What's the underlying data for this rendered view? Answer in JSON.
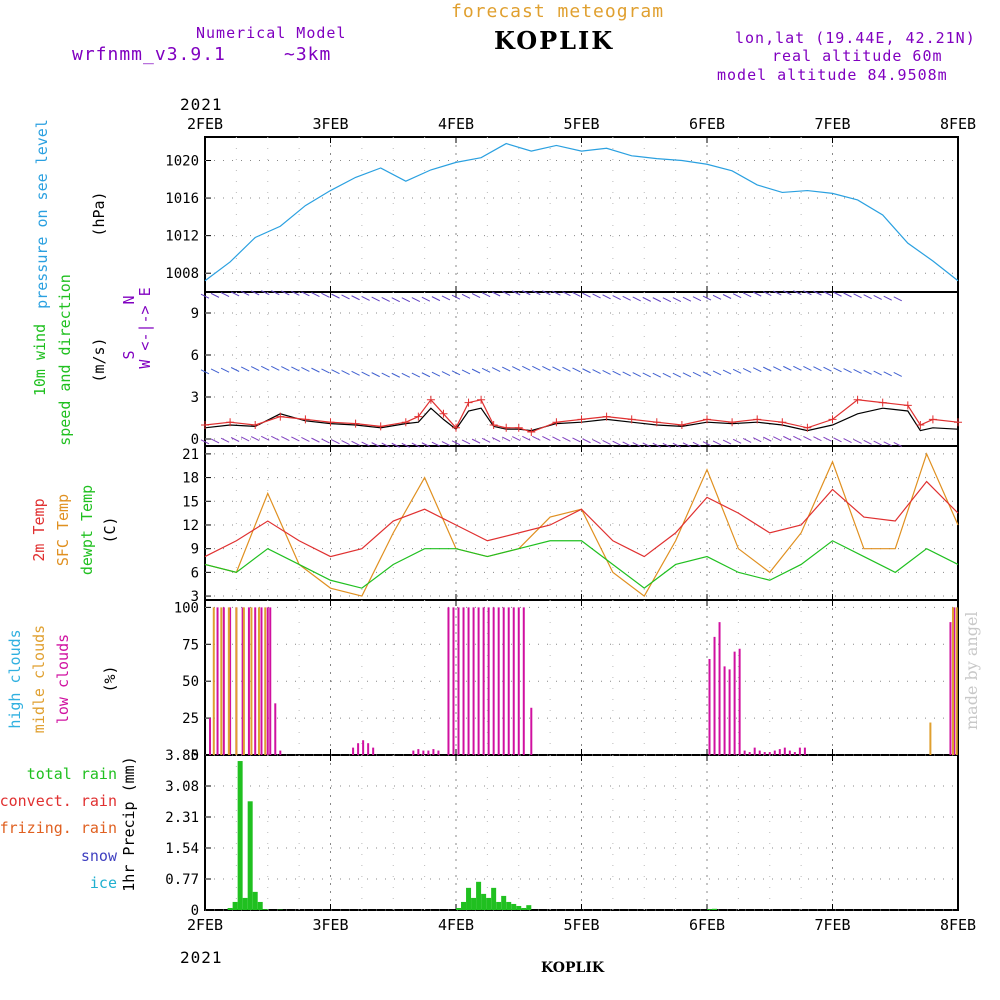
{
  "header": {
    "model_label": "Numerical Model",
    "model_name": "wrfnmm_v3.9.1",
    "resolution": "~3km",
    "chart_type": "forecast meteogram",
    "station": "KOPLIK",
    "lonlat": "lon,lat (19.44E, 42.21N)",
    "real_alt": "real altitude 60m",
    "model_alt": "model altitude  84.9508m",
    "credit": "made by angel"
  },
  "colors": {
    "pressure": "#2aa0e0",
    "wind_obs": "#e03030",
    "wind_model": "#000000",
    "t2m": "#e03030",
    "sfc": "#e09020",
    "dew": "#20c020",
    "low_cloud": "#d010a0",
    "mid_cloud": "#e0a030",
    "high_cloud": "#30b0e0",
    "total_rain": "#20c020",
    "convect_rain": "#e03030",
    "frizing_rain": "#e06020",
    "snow": "#4040c0",
    "ice": "#20b0d0",
    "grid": "#888888"
  },
  "chart_data": {
    "type": "line",
    "x_axis": {
      "year": "2021",
      "ticks": [
        "2FEB",
        "3FEB",
        "4FEB",
        "5FEB",
        "6FEB",
        "7FEB",
        "8FEB"
      ],
      "xlim": [
        0,
        6
      ]
    },
    "xlabel": "KOPLIK",
    "panels": [
      {
        "id": "pressure",
        "ylabel_lines": [
          "pressure on see level",
          "(hPa)"
        ],
        "ylim": [
          1006,
          1022.5
        ],
        "yticks": [
          "1008",
          "1012",
          "1016",
          "1020"
        ],
        "ytick_values": [
          1008,
          1012,
          1016,
          1020
        ],
        "series": [
          {
            "x": [
              0,
              0.2,
              0.4,
              0.6,
              0.8,
              1.0,
              1.2,
              1.4,
              1.6,
              1.8,
              2.0,
              2.2,
              2.4,
              2.6,
              2.8,
              3.0,
              3.2,
              3.4,
              3.6,
              3.8,
              4.0,
              4.2,
              4.4,
              4.6,
              4.8,
              5.0,
              5.2,
              5.4,
              5.6,
              5.8,
              6.0
            ],
            "y": [
              1007.2,
              1009.2,
              1011.8,
              1013.0,
              1015.2,
              1016.8,
              1018.2,
              1019.2,
              1017.8,
              1019.0,
              1019.8,
              1020.3,
              1021.8,
              1021.0,
              1021.6,
              1021.0,
              1021.3,
              1020.5,
              1020.2,
              1020.0,
              1019.6,
              1018.9,
              1017.4,
              1016.6,
              1016.8,
              1016.5,
              1015.8,
              1014.2,
              1011.2,
              1009.3,
              1007.2
            ]
          }
        ]
      },
      {
        "id": "wind",
        "ylabel_lines": [
          "10m wind",
          "speed and direction",
          "(m/s)"
        ],
        "compass": [
          "N",
          "W <-|-> E",
          "S"
        ],
        "ylim": [
          -0.5,
          10.5
        ],
        "yticks": [
          "0",
          "3",
          "6",
          "9"
        ],
        "ytick_values": [
          0,
          3,
          6,
          9
        ],
        "series": [
          {
            "name": "obs",
            "x": [
              0,
              0.2,
              0.4,
              0.6,
              0.8,
              1.0,
              1.2,
              1.4,
              1.6,
              1.7,
              1.8,
              1.9,
              2.0,
              2.1,
              2.2,
              2.3,
              2.4,
              2.5,
              2.6,
              2.8,
              3.0,
              3.2,
              3.4,
              3.6,
              3.8,
              4.0,
              4.2,
              4.4,
              4.6,
              4.8,
              5.0,
              5.2,
              5.4,
              5.6,
              5.7,
              5.8,
              6.0
            ],
            "y": [
              1.0,
              1.2,
              1.0,
              1.6,
              1.4,
              1.2,
              1.1,
              0.9,
              1.2,
              1.6,
              2.8,
              1.8,
              0.8,
              2.6,
              2.8,
              1.0,
              0.8,
              0.8,
              0.5,
              1.2,
              1.4,
              1.6,
              1.4,
              1.2,
              1.0,
              1.4,
              1.2,
              1.4,
              1.2,
              0.8,
              1.4,
              2.8,
              2.6,
              2.4,
              1.0,
              1.4,
              1.2
            ]
          },
          {
            "name": "model",
            "x": [
              0,
              0.2,
              0.4,
              0.6,
              0.8,
              1.0,
              1.2,
              1.4,
              1.6,
              1.7,
              1.8,
              1.9,
              2.0,
              2.1,
              2.2,
              2.3,
              2.4,
              2.5,
              2.6,
              2.8,
              3.0,
              3.2,
              3.4,
              3.6,
              3.8,
              4.0,
              4.2,
              4.4,
              4.6,
              4.8,
              5.0,
              5.2,
              5.4,
              5.6,
              5.7,
              5.8,
              6.0
            ],
            "y": [
              0.8,
              1.0,
              0.9,
              1.8,
              1.3,
              1.1,
              1.0,
              0.8,
              1.1,
              1.2,
              2.2,
              1.4,
              0.7,
              2.0,
              2.2,
              0.9,
              0.7,
              0.7,
              0.6,
              1.1,
              1.2,
              1.4,
              1.2,
              1.0,
              0.9,
              1.2,
              1.1,
              1.2,
              1.0,
              0.6,
              1.0,
              1.8,
              2.2,
              2.0,
              0.6,
              0.8,
              0.7
            ]
          }
        ]
      },
      {
        "id": "temperature",
        "ylabel_lines": [
          "2m Temp",
          "SFC Temp",
          "dewpt Temp",
          "(C)"
        ],
        "ylim": [
          2.5,
          22
        ],
        "yticks": [
          "3",
          "6",
          "9",
          "12",
          "15",
          "18",
          "21"
        ],
        "ytick_values": [
          3,
          6,
          9,
          12,
          15,
          18,
          21
        ],
        "series": [
          {
            "name": "2m Temp",
            "x": [
              0,
              0.25,
              0.5,
              0.75,
              1.0,
              1.25,
              1.5,
              1.75,
              2.0,
              2.25,
              2.5,
              2.75,
              3.0,
              3.25,
              3.5,
              3.75,
              4.0,
              4.25,
              4.5,
              4.75,
              5.0,
              5.25,
              5.5,
              5.75,
              6.0
            ],
            "y": [
              8,
              10,
              12.5,
              10,
              8,
              9,
              12.5,
              14,
              12,
              10,
              11,
              12,
              14,
              10,
              8,
              11,
              15.5,
              13.5,
              11,
              12,
              16.5,
              13,
              12.5,
              17.5,
              13.5
            ]
          },
          {
            "name": "SFC Temp",
            "x": [
              0,
              0.25,
              0.5,
              0.75,
              1.0,
              1.25,
              1.5,
              1.75,
              2.0,
              2.25,
              2.5,
              2.75,
              3.0,
              3.25,
              3.5,
              3.75,
              4.0,
              4.25,
              4.5,
              4.75,
              5.0,
              5.25,
              5.5,
              5.75,
              6.0
            ],
            "y": [
              7,
              6,
              16,
              7,
              4,
              3,
              11,
              18,
              9,
              8,
              9,
              13,
              14,
              6,
              3,
              10,
              19,
              9,
              6,
              11,
              20,
              9,
              9,
              21,
              12
            ]
          },
          {
            "name": "dewpt Temp",
            "x": [
              0,
              0.25,
              0.5,
              0.75,
              1.0,
              1.25,
              1.5,
              1.75,
              2.0,
              2.25,
              2.5,
              2.75,
              3.0,
              3.25,
              3.5,
              3.75,
              4.0,
              4.25,
              4.5,
              4.75,
              5.0,
              5.25,
              5.5,
              5.75,
              6.0
            ],
            "y": [
              7,
              6,
              9,
              7,
              5,
              4,
              7,
              9,
              9,
              8,
              9,
              10,
              10,
              7,
              4,
              7,
              8,
              6,
              5,
              7,
              10,
              8,
              6,
              9,
              7
            ]
          }
        ]
      },
      {
        "id": "clouds",
        "ylabel_lines": [
          "high  clouds",
          "midle clouds",
          "low   clouds",
          "(%)"
        ],
        "ylim": [
          0,
          105
        ],
        "yticks": [
          "0",
          "25",
          "50",
          "75",
          "100"
        ],
        "ytick_values": [
          0,
          25,
          50,
          75,
          100
        ],
        "series": [
          {
            "name": "low",
            "x": [
              0.04,
              0.1,
              0.15,
              0.2,
              0.25,
              0.3,
              0.35,
              0.4,
              0.45,
              0.5,
              0.52,
              0.56,
              0.6,
              1.18,
              1.22,
              1.26,
              1.3,
              1.34,
              1.66,
              1.7,
              1.74,
              1.78,
              1.82,
              1.86,
              1.94,
              1.98,
              2.02,
              2.06,
              2.1,
              2.14,
              2.18,
              2.22,
              2.26,
              2.3,
              2.34,
              2.38,
              2.42,
              2.46,
              2.5,
              2.54,
              2.6,
              4.02,
              4.06,
              4.1,
              4.14,
              4.18,
              4.22,
              4.26,
              4.3,
              4.34,
              4.38,
              4.42,
              4.46,
              4.5,
              4.54,
              4.58,
              4.62,
              4.66,
              4.7,
              4.74,
              4.78,
              5.85,
              5.9,
              5.94,
              5.97
            ],
            "y": [
              25,
              100,
              100,
              100,
              100,
              100,
              100,
              100,
              100,
              100,
              100,
              35,
              3,
              5,
              8,
              10,
              8,
              5,
              3,
              4,
              3,
              3,
              4,
              3,
              100,
              100,
              100,
              100,
              100,
              100,
              100,
              100,
              100,
              100,
              100,
              100,
              100,
              100,
              100,
              100,
              32,
              65,
              80,
              90,
              60,
              58,
              70,
              72,
              3,
              2,
              5,
              3,
              2,
              2,
              3,
              4,
              5,
              3,
              2,
              5,
              5,
              0,
              0,
              90,
              100
            ]
          },
          {
            "name": "midle",
            "x": [
              0.07,
              0.13,
              0.19,
              0.25,
              0.31,
              0.37,
              0.43,
              0.48,
              5.78,
              5.96,
              5.99
            ],
            "y": [
              100,
              100,
              100,
              100,
              100,
              100,
              100,
              100,
              22,
              100,
              100
            ]
          }
        ]
      },
      {
        "id": "precip",
        "ylabel_lines": [
          "1hr Precip (mm)"
        ],
        "legend": [
          "total   rain",
          "convect. rain",
          "frizing. rain",
          "snow",
          "ice"
        ],
        "ylim": [
          0,
          3.85
        ],
        "yticks": [
          "0",
          "0.77",
          "1.54",
          "2.31",
          "3.08",
          "3.85"
        ],
        "ytick_values": [
          0,
          0.77,
          1.54,
          2.31,
          3.08,
          3.85
        ],
        "series": [
          {
            "name": "total rain",
            "x": [
              0.2,
              0.24,
              0.28,
              0.32,
              0.36,
              0.4,
              0.44,
              0.48,
              0.6,
              2.02,
              2.06,
              2.1,
              2.14,
              2.18,
              2.22,
              2.26,
              2.3,
              2.34,
              2.38,
              2.42,
              2.46,
              2.5,
              2.54,
              2.58,
              4.02,
              4.06
            ],
            "y": [
              0.05,
              0.2,
              3.7,
              0.3,
              2.7,
              0.45,
              0.2,
              0.02,
              0.01,
              0.05,
              0.2,
              0.55,
              0.3,
              0.7,
              0.4,
              0.3,
              0.55,
              0.2,
              0.35,
              0.2,
              0.15,
              0.1,
              0.05,
              0.12,
              0.02,
              0.03
            ]
          }
        ]
      }
    ]
  }
}
